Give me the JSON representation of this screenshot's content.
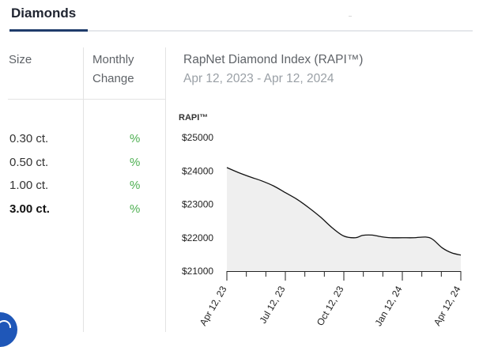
{
  "tabs": {
    "active_label": "Diamonds"
  },
  "table": {
    "size_header": "Size",
    "change_header": [
      "Monthly",
      "Change"
    ],
    "rows": [
      {
        "size": "0.30 ct.",
        "change": "%",
        "bold": false
      },
      {
        "size": "0.50 ct.",
        "change": "%",
        "bold": false
      },
      {
        "size": "1.00 ct.",
        "change": "%",
        "bold": false
      },
      {
        "size": "3.00 ct.",
        "change": "%",
        "bold": true
      }
    ]
  },
  "index": {
    "title": "RapNet Diamond Index (RAPI™)",
    "date_range": "Apr 12, 2023 - Apr 12, 2024"
  },
  "chart_data": {
    "type": "area",
    "ylabel": "RAPI™",
    "ylim": [
      21000,
      25000
    ],
    "yticks": [
      "$25000",
      "$24000",
      "$23000",
      "$22000",
      "$21000"
    ],
    "xticks": [
      "Apr 12, 23",
      "Jul 12, 23",
      "Oct 12, 23",
      "Jan 12, 24",
      "Apr 12, 24"
    ],
    "x": [
      0,
      0.05,
      0.1,
      0.15,
      0.2,
      0.25,
      0.3,
      0.35,
      0.4,
      0.45,
      0.5,
      0.55,
      0.58,
      0.62,
      0.66,
      0.7,
      0.75,
      0.8,
      0.85,
      0.88,
      0.92,
      0.96,
      1.0
    ],
    "series": [
      {
        "values": [
          24100,
          23950,
          23820,
          23700,
          23550,
          23350,
          23150,
          22900,
          22620,
          22300,
          22050,
          22000,
          22070,
          22080,
          22030,
          22000,
          22000,
          22000,
          22020,
          21950,
          21700,
          21550,
          21480
        ]
      }
    ],
    "fill_color": "#efefef",
    "line_color": "#111111",
    "grid": false
  }
}
